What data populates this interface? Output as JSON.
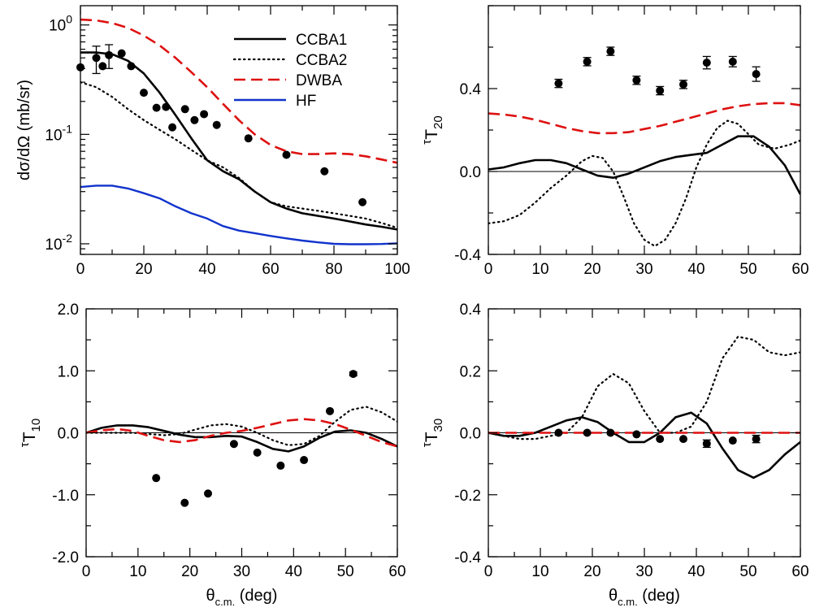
{
  "colors": {
    "ccba1": "#000000",
    "ccba2": "#000000",
    "dwba": "#dd1111",
    "hf": "#1133cc",
    "points": "#000000"
  },
  "chart_data": [
    {
      "id": "cross-section",
      "type": "line",
      "yscale": "log",
      "xlim": [
        0,
        100
      ],
      "ylim": [
        0.008,
        1.5
      ],
      "xticks": [
        0,
        20,
        40,
        60,
        80,
        100
      ],
      "xtick_labels": [
        "0",
        "20",
        "40",
        "60",
        "80",
        "100"
      ],
      "yticks": [
        1,
        0.1,
        0.01
      ],
      "ytick_labels": [
        {
          "base": "10",
          "exp": "0"
        },
        {
          "base": "10",
          "exp": "-1"
        },
        {
          "base": "10",
          "exp": "-2"
        }
      ],
      "ylabel": "dσ/dΩ (mb/sr)",
      "xlabel": {
        "main": "",
        "sub": "",
        "rest": ""
      },
      "legend": {
        "position": "top-right",
        "entries": [
          {
            "label": "CCBA1",
            "series": "ccba1"
          },
          {
            "label": "CCBA2",
            "series": "ccba2"
          },
          {
            "label": "DWBA",
            "series": "dwba"
          },
          {
            "label": "HF",
            "series": "hf"
          }
        ]
      },
      "series": [
        {
          "key": "ccba1",
          "x": [
            0,
            5,
            10,
            15,
            20,
            25,
            30,
            35,
            40,
            45,
            50,
            55,
            60,
            65,
            70,
            75,
            80,
            85,
            90,
            95,
            100
          ],
          "y": [
            0.56,
            0.56,
            0.54,
            0.47,
            0.36,
            0.24,
            0.15,
            0.092,
            0.058,
            0.046,
            0.039,
            0.03,
            0.024,
            0.021,
            0.019,
            0.018,
            0.017,
            0.016,
            0.015,
            0.0143,
            0.0135
          ]
        },
        {
          "key": "ccba2",
          "x": [
            0,
            5,
            10,
            15,
            20,
            25,
            30,
            35,
            40,
            45,
            50,
            55,
            60,
            65,
            70,
            75,
            80,
            85,
            90,
            95,
            100
          ],
          "y": [
            0.3,
            0.27,
            0.22,
            0.17,
            0.135,
            0.11,
            0.09,
            0.072,
            0.058,
            0.05,
            0.04,
            0.03,
            0.024,
            0.022,
            0.021,
            0.02,
            0.019,
            0.018,
            0.017,
            0.0155,
            0.014
          ]
        },
        {
          "key": "dwba",
          "x": [
            0,
            5,
            10,
            15,
            20,
            25,
            30,
            35,
            40,
            45,
            50,
            55,
            60,
            65,
            70,
            75,
            80,
            85,
            90,
            95,
            100
          ],
          "y": [
            1.12,
            1.1,
            1.04,
            0.94,
            0.8,
            0.65,
            0.5,
            0.37,
            0.27,
            0.19,
            0.135,
            0.1,
            0.08,
            0.07,
            0.066,
            0.066,
            0.067,
            0.066,
            0.063,
            0.059,
            0.055
          ]
        },
        {
          "key": "hf",
          "x": [
            0,
            5,
            10,
            15,
            20,
            25,
            30,
            35,
            40,
            45,
            50,
            55,
            60,
            65,
            70,
            75,
            80,
            85,
            90,
            95,
            100
          ],
          "y": [
            0.033,
            0.034,
            0.034,
            0.032,
            0.029,
            0.026,
            0.022,
            0.019,
            0.017,
            0.0145,
            0.0132,
            0.0125,
            0.0118,
            0.0112,
            0.0107,
            0.0103,
            0.01,
            0.0099,
            0.0099,
            0.00995,
            0.0101
          ]
        }
      ],
      "points": {
        "x": [
          0,
          5,
          7,
          9,
          13,
          16,
          20,
          24,
          27,
          29,
          33,
          36,
          39,
          43,
          53,
          65,
          77,
          89
        ],
        "y": [
          0.41,
          0.5,
          0.42,
          0.53,
          0.55,
          0.42,
          0.24,
          0.175,
          0.178,
          0.116,
          0.17,
          0.135,
          0.153,
          0.122,
          0.092,
          0.065,
          0.046,
          0.024
        ],
        "err": [
          0,
          0.14,
          0,
          0.13,
          0,
          0,
          0,
          0,
          0,
          0,
          0,
          0,
          0,
          0,
          0,
          0,
          0,
          0
        ]
      }
    },
    {
      "id": "t20",
      "type": "line",
      "xlim": [
        0,
        60
      ],
      "ylim": [
        -0.4,
        0.8
      ],
      "xticks": [
        0,
        10,
        20,
        30,
        40,
        50,
        60
      ],
      "xtick_labels": [
        "0",
        "10",
        "20",
        "30",
        "40",
        "50",
        "60"
      ],
      "yticks": [
        -0.4,
        0.0,
        0.4
      ],
      "ytick_labels": [
        "-0.4",
        "0.0",
        "0.4"
      ],
      "ylabel": {
        "pre": "τ",
        "main": "T",
        "sub": "20"
      },
      "xlabel": {
        "main": "",
        "sub": "",
        "rest": ""
      },
      "zero_line": true,
      "series": [
        {
          "key": "ccba1",
          "x": [
            0,
            3,
            6,
            9,
            12,
            15,
            18,
            21,
            24,
            27,
            30,
            33,
            36,
            39,
            42,
            45,
            48,
            51,
            54,
            57,
            60
          ],
          "y": [
            0.01,
            0.02,
            0.04,
            0.055,
            0.055,
            0.04,
            0.01,
            -0.02,
            -0.03,
            -0.01,
            0.02,
            0.05,
            0.07,
            0.08,
            0.09,
            0.13,
            0.17,
            0.17,
            0.12,
            0.03,
            -0.11
          ]
        },
        {
          "key": "ccba2",
          "x": [
            0,
            3,
            6,
            9,
            12,
            15,
            18,
            20,
            22,
            24,
            26,
            28,
            30,
            32,
            34,
            36,
            38,
            40,
            42,
            44,
            46,
            48,
            50,
            52,
            55,
            58,
            60
          ],
          "y": [
            -0.25,
            -0.24,
            -0.21,
            -0.15,
            -0.08,
            -0.02,
            0.05,
            0.075,
            0.065,
            0.0,
            -0.12,
            -0.25,
            -0.33,
            -0.36,
            -0.33,
            -0.25,
            -0.13,
            0.02,
            0.13,
            0.21,
            0.245,
            0.23,
            0.18,
            0.13,
            0.11,
            0.13,
            0.15
          ]
        },
        {
          "key": "dwba",
          "x": [
            0,
            3,
            6,
            9,
            12,
            15,
            18,
            21,
            24,
            27,
            30,
            33,
            36,
            39,
            42,
            45,
            48,
            51,
            54,
            57,
            60
          ],
          "y": [
            0.28,
            0.275,
            0.265,
            0.25,
            0.23,
            0.21,
            0.195,
            0.185,
            0.185,
            0.19,
            0.205,
            0.22,
            0.24,
            0.26,
            0.28,
            0.3,
            0.315,
            0.325,
            0.33,
            0.33,
            0.32
          ]
        }
      ],
      "points": {
        "x": [
          13.5,
          19,
          23.5,
          28.5,
          33,
          37.5,
          42,
          47,
          51.5
        ],
        "y": [
          0.425,
          0.53,
          0.58,
          0.44,
          0.39,
          0.42,
          0.525,
          0.53,
          0.47
        ],
        "err": [
          0.02,
          0.02,
          0.02,
          0.02,
          0.02,
          0.02,
          0.03,
          0.025,
          0.035
        ]
      }
    },
    {
      "id": "t10",
      "type": "line",
      "xlim": [
        0,
        60
      ],
      "ylim": [
        -2.0,
        2.0
      ],
      "xticks": [
        0,
        10,
        20,
        30,
        40,
        50,
        60
      ],
      "xtick_labels": [
        "0",
        "10",
        "20",
        "30",
        "40",
        "50",
        "60"
      ],
      "yticks": [
        -2.0,
        -1.0,
        0.0,
        1.0,
        2.0
      ],
      "ytick_labels": [
        "-2.0",
        "-1.0",
        "0.0",
        "1.0",
        "2.0"
      ],
      "ylabel": {
        "pre": "τ",
        "main": "T",
        "sub": "10"
      },
      "xlabel": {
        "main": "θ",
        "sub": "c.m.",
        "rest": " (deg)"
      },
      "zero_line": true,
      "series": [
        {
          "key": "ccba1",
          "x": [
            0,
            3,
            6,
            9,
            12,
            15,
            18,
            21,
            24,
            27,
            30,
            33,
            36,
            39,
            42,
            45,
            48,
            51,
            54,
            57,
            60
          ],
          "y": [
            0.0,
            0.08,
            0.12,
            0.12,
            0.09,
            0.03,
            -0.03,
            -0.07,
            -0.07,
            -0.05,
            -0.06,
            -0.15,
            -0.26,
            -0.3,
            -0.22,
            -0.08,
            0.02,
            0.04,
            0.0,
            -0.1,
            -0.22
          ]
        },
        {
          "key": "ccba2",
          "x": [
            0,
            3,
            6,
            9,
            12,
            15,
            18,
            21,
            24,
            27,
            30,
            33,
            36,
            39,
            42,
            45,
            48,
            51,
            54,
            57,
            60
          ],
          "y": [
            0.0,
            0.0,
            0.0,
            0.0,
            -0.02,
            -0.04,
            -0.02,
            0.05,
            0.12,
            0.14,
            0.1,
            0.0,
            -0.12,
            -0.2,
            -0.18,
            -0.05,
            0.18,
            0.37,
            0.42,
            0.33,
            0.18
          ]
        },
        {
          "key": "dwba",
          "x": [
            0,
            3,
            6,
            9,
            12,
            15,
            18,
            21,
            24,
            27,
            30,
            33,
            36,
            39,
            42,
            45,
            48,
            51,
            54,
            57,
            60
          ],
          "y": [
            0.0,
            0.04,
            0.06,
            0.03,
            -0.05,
            -0.12,
            -0.15,
            -0.12,
            -0.05,
            0.0,
            0.03,
            0.08,
            0.14,
            0.2,
            0.22,
            0.2,
            0.14,
            0.05,
            -0.05,
            -0.15,
            -0.22
          ]
        }
      ],
      "points": {
        "x": [
          13.5,
          19,
          23.5,
          28.5,
          33,
          37.5,
          42,
          47,
          51.5
        ],
        "y": [
          -0.73,
          -1.13,
          -0.98,
          -0.18,
          -0.32,
          -0.53,
          -0.44,
          0.35,
          0.95
        ],
        "err": [
          0,
          0,
          0,
          0,
          0,
          0,
          0,
          0,
          0.03
        ]
      }
    },
    {
      "id": "t30",
      "type": "line",
      "xlim": [
        0,
        60
      ],
      "ylim": [
        -0.4,
        0.4
      ],
      "xticks": [
        0,
        10,
        20,
        30,
        40,
        50,
        60
      ],
      "xtick_labels": [
        "0",
        "10",
        "20",
        "30",
        "40",
        "50",
        "60"
      ],
      "yticks": [
        -0.4,
        -0.2,
        0.0,
        0.2,
        0.4
      ],
      "ytick_labels": [
        "-0.4",
        "-0.2",
        "0.0",
        "0.2",
        "0.4"
      ],
      "ylabel": {
        "pre": "τ",
        "main": "T",
        "sub": "30"
      },
      "xlabel": {
        "main": "θ",
        "sub": "c.m.",
        "rest": " (deg)"
      },
      "zero_line": true,
      "series": [
        {
          "key": "ccba1",
          "x": [
            0,
            3,
            6,
            9,
            12,
            15,
            18,
            21,
            24,
            27,
            30,
            33,
            36,
            39,
            42,
            45,
            48,
            51,
            54,
            57,
            60
          ],
          "y": [
            0.0,
            -0.01,
            -0.01,
            0.0,
            0.02,
            0.04,
            0.05,
            0.035,
            0.0,
            -0.03,
            -0.03,
            0.0,
            0.05,
            0.065,
            0.03,
            -0.05,
            -0.12,
            -0.145,
            -0.12,
            -0.07,
            -0.03
          ]
        },
        {
          "key": "ccba2",
          "x": [
            0,
            3,
            6,
            9,
            12,
            15,
            18,
            21,
            24,
            27,
            30,
            33,
            36,
            39,
            42,
            45,
            48,
            51,
            54,
            57,
            60
          ],
          "y": [
            0.0,
            -0.01,
            -0.02,
            -0.02,
            -0.01,
            0.0,
            0.05,
            0.15,
            0.19,
            0.16,
            0.07,
            0.0,
            0.0,
            0.02,
            0.1,
            0.24,
            0.31,
            0.3,
            0.26,
            0.25,
            0.26
          ]
        },
        {
          "key": "dwba",
          "x": [
            0,
            10,
            20,
            30,
            40,
            50,
            60
          ],
          "y": [
            0.0,
            0.0,
            0.0,
            0.0,
            0.0,
            0.0,
            0.0
          ]
        }
      ],
      "points": {
        "x": [
          13.5,
          19,
          23.5,
          28.5,
          33,
          37.5,
          42,
          47,
          51.5
        ],
        "y": [
          0.0,
          0.0,
          0.0,
          -0.005,
          -0.02,
          -0.02,
          -0.035,
          -0.025,
          -0.02
        ],
        "err": [
          0,
          0,
          0,
          0,
          0,
          0,
          0.012,
          0,
          0.012
        ]
      }
    }
  ]
}
